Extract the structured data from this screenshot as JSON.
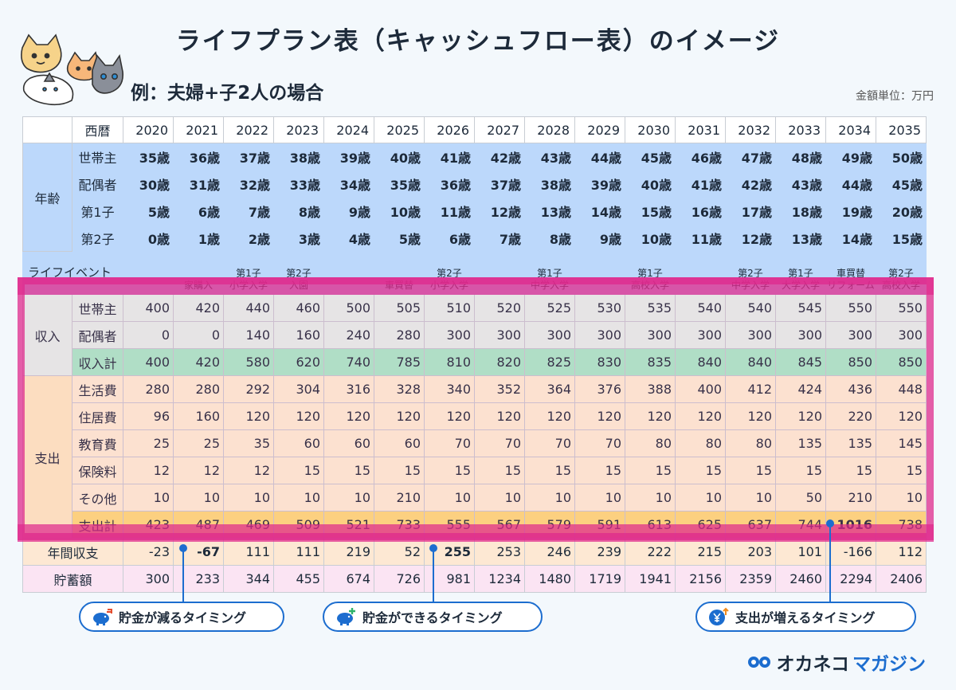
{
  "header": {
    "title": "ライフプラン表（キャッシュフロー表）のイメージ",
    "subtitle": "例：夫婦+子2人の場合",
    "unit": "金額単位：万円"
  },
  "table": {
    "year_label": "西暦",
    "years": [
      "2020",
      "2021",
      "2022",
      "2023",
      "2024",
      "2025",
      "2026",
      "2027",
      "2028",
      "2029",
      "2030",
      "2031",
      "2032",
      "2033",
      "2034",
      "2035"
    ],
    "age": {
      "label": "年齢",
      "rows": [
        {
          "name": "世帯主",
          "values": [
            "35歳",
            "36歳",
            "37歳",
            "38歳",
            "39歳",
            "40歳",
            "41歳",
            "42歳",
            "43歳",
            "44歳",
            "45歳",
            "46歳",
            "47歳",
            "48歳",
            "49歳",
            "50歳"
          ]
        },
        {
          "name": "配偶者",
          "values": [
            "30歳",
            "31歳",
            "32歳",
            "33歳",
            "34歳",
            "35歳",
            "36歳",
            "37歳",
            "38歳",
            "39歳",
            "40歳",
            "41歳",
            "42歳",
            "43歳",
            "44歳",
            "45歳"
          ]
        },
        {
          "name": "第1子",
          "values": [
            "5歳",
            "6歳",
            "7歳",
            "8歳",
            "9歳",
            "10歳",
            "11歳",
            "12歳",
            "13歳",
            "14歳",
            "15歳",
            "16歳",
            "17歳",
            "18歳",
            "19歳",
            "20歳"
          ]
        },
        {
          "name": "第2子",
          "values": [
            "0歳",
            "1歳",
            "2歳",
            "3歳",
            "4歳",
            "5歳",
            "6歳",
            "7歳",
            "8歳",
            "9歳",
            "10歳",
            "11歳",
            "12歳",
            "13歳",
            "14歳",
            "15歳"
          ]
        }
      ]
    },
    "events": {
      "label": "ライフイベント",
      "values": [
        [
          "",
          ""
        ],
        [
          "",
          "家購入"
        ],
        [
          "第1子",
          "小学入学"
        ],
        [
          "第2子",
          "入園"
        ],
        [
          "",
          ""
        ],
        [
          "",
          "車買替"
        ],
        [
          "第2子",
          "小学入学"
        ],
        [
          "",
          ""
        ],
        [
          "第1子",
          "中学入学"
        ],
        [
          "",
          ""
        ],
        [
          "第1子",
          "高校入学"
        ],
        [
          "",
          ""
        ],
        [
          "第2子",
          "中学入学"
        ],
        [
          "第1子",
          "大学入学"
        ],
        [
          "車買替",
          "リフォーム"
        ],
        [
          "第2子",
          "高校入学"
        ]
      ]
    },
    "income": {
      "label": "収入",
      "rows": [
        {
          "name": "世帯主",
          "values": [
            "400",
            "420",
            "440",
            "460",
            "500",
            "505",
            "510",
            "520",
            "525",
            "530",
            "535",
            "540",
            "540",
            "545",
            "550",
            "550"
          ]
        },
        {
          "name": "配偶者",
          "values": [
            "0",
            "0",
            "140",
            "160",
            "240",
            "280",
            "300",
            "300",
            "300",
            "300",
            "300",
            "300",
            "300",
            "300",
            "300",
            "300"
          ]
        }
      ],
      "total": {
        "name": "収入計",
        "values": [
          "400",
          "420",
          "580",
          "620",
          "740",
          "785",
          "810",
          "820",
          "825",
          "830",
          "835",
          "840",
          "840",
          "845",
          "850",
          "850"
        ]
      }
    },
    "expense": {
      "label": "支出",
      "rows": [
        {
          "name": "生活費",
          "values": [
            "280",
            "280",
            "292",
            "304",
            "316",
            "328",
            "340",
            "352",
            "364",
            "376",
            "388",
            "400",
            "412",
            "424",
            "436",
            "448"
          ]
        },
        {
          "name": "住居費",
          "values": [
            "96",
            "160",
            "120",
            "120",
            "120",
            "120",
            "120",
            "120",
            "120",
            "120",
            "120",
            "120",
            "120",
            "120",
            "220",
            "120"
          ]
        },
        {
          "name": "教育費",
          "values": [
            "25",
            "25",
            "35",
            "60",
            "60",
            "60",
            "70",
            "70",
            "70",
            "70",
            "80",
            "80",
            "80",
            "135",
            "135",
            "145"
          ]
        },
        {
          "name": "保険料",
          "values": [
            "12",
            "12",
            "12",
            "15",
            "15",
            "15",
            "15",
            "15",
            "15",
            "15",
            "15",
            "15",
            "15",
            "15",
            "15",
            "15"
          ]
        },
        {
          "name": "その他",
          "values": [
            "10",
            "10",
            "10",
            "10",
            "10",
            "210",
            "10",
            "10",
            "10",
            "10",
            "10",
            "10",
            "10",
            "50",
            "210",
            "10"
          ]
        }
      ],
      "total": {
        "name": "支出計",
        "values": [
          "423",
          "487",
          "469",
          "509",
          "521",
          "733",
          "555",
          "567",
          "579",
          "591",
          "613",
          "625",
          "637",
          "744",
          "1016",
          "738"
        ]
      }
    },
    "balance": {
      "name": "年間収支",
      "values": [
        "-23",
        "-67",
        "111",
        "111",
        "219",
        "52",
        "255",
        "253",
        "246",
        "239",
        "222",
        "215",
        "203",
        "101",
        "-166",
        "112"
      ]
    },
    "savings": {
      "name": "貯蓄額",
      "values": [
        "300",
        "233",
        "344",
        "455",
        "674",
        "726",
        "981",
        "1234",
        "1480",
        "1719",
        "1941",
        "2156",
        "2359",
        "2460",
        "2294",
        "2406"
      ]
    }
  },
  "callouts": [
    {
      "label": "貯金が減るタイミング",
      "icon": "piggy-bank-decrease-icon"
    },
    {
      "label": "貯金ができるタイミング",
      "icon": "piggy-bank-increase-icon"
    },
    {
      "label": "支出が増えるタイミング",
      "icon": "yen-coin-up-icon"
    }
  ],
  "brand": {
    "part1": "オカネコ",
    "part2": "マガジン"
  },
  "colors": {
    "accent": "#1c6dcf",
    "highlight": "#df288c",
    "age_bg": "#bcd8fb",
    "income_total": "#a8f2cb",
    "expense_total": "#ffe27a"
  }
}
